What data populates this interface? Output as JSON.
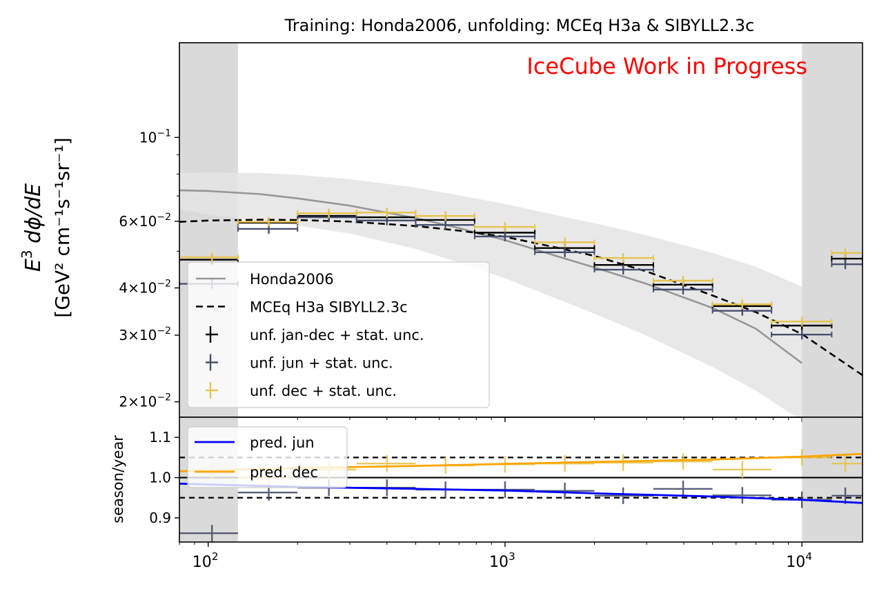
{
  "chart_data": {
    "type": "errorbar",
    "title": "Training: Honda2006, unfolding: MCEq H3a & SIBYLL2.3c",
    "watermark": "IceCube Work in Progress",
    "x_scale": "log",
    "x_range": [
      80,
      16000
    ],
    "x_tick_labels": [
      {
        "value": 100,
        "mantissa": "10",
        "exp": "2"
      },
      {
        "value": 1000,
        "mantissa": "10",
        "exp": "3"
      },
      {
        "value": 10000,
        "mantissa": "10",
        "exp": "4"
      }
    ],
    "excluded_regions": [
      [
        80,
        126
      ],
      [
        10000,
        16000
      ]
    ],
    "colors": {
      "honda": "#969696",
      "mceq": "#000000",
      "jan_dec": "#000000",
      "jun": "#474e6c",
      "dec": "#e6c44e",
      "pred_jun": "#0000ff",
      "pred_dec": "#ffa500",
      "band": "#e4e4e4",
      "excluded": "#dadada",
      "watermark": "#ff0000"
    },
    "top_panel": {
      "ylabel_line1": "E³ dφ/dE",
      "ylabel_line1_parts": {
        "base": "E",
        "sup": "3",
        "rest": " dϕ/dE"
      },
      "ylabel_line2": "[GeV² cm⁻¹s⁻¹sr⁻¹]",
      "y_scale": "log",
      "y_range": [
        0.0182,
        0.178
      ],
      "y_tick_labels": [
        {
          "value": 0.1,
          "mantissa": "10",
          "exp": "−1",
          "prefix": ""
        },
        {
          "value": 0.06,
          "prefix": "6×",
          "mantissa": "10",
          "exp": "−2"
        },
        {
          "value": 0.04,
          "prefix": "4×",
          "mantissa": "10",
          "exp": "−2"
        },
        {
          "value": 0.03,
          "prefix": "3×",
          "mantissa": "10",
          "exp": "−2"
        },
        {
          "value": 0.02,
          "prefix": "2×",
          "mantissa": "10",
          "exp": "−2"
        }
      ],
      "honda2006": {
        "x": [
          80,
          100,
          150,
          200,
          300,
          500,
          700,
          1000,
          1500,
          2000,
          3000,
          5000,
          7000,
          10000
        ],
        "y": [
          0.0725,
          0.0722,
          0.0708,
          0.069,
          0.066,
          0.0612,
          0.0576,
          0.0535,
          0.0485,
          0.0453,
          0.041,
          0.0354,
          0.0312,
          0.0253
        ],
        "band_upper": [
          0.0805,
          0.0808,
          0.0805,
          0.0796,
          0.0776,
          0.0737,
          0.0703,
          0.0667,
          0.0622,
          0.0593,
          0.0551,
          0.0495,
          0.0455,
          0.0403
        ],
        "band_lower": [
          0.0645,
          0.0625,
          0.06,
          0.0585,
          0.0557,
          0.0507,
          0.0467,
          0.0424,
          0.0374,
          0.0342,
          0.0299,
          0.0247,
          0.0214,
          0.0178
        ]
      },
      "mceq_h3a": {
        "x": [
          80,
          100,
          150,
          200,
          300,
          500,
          700,
          1000,
          1500,
          2000,
          3000,
          5000,
          7000,
          10000,
          16000
        ],
        "y": [
          0.0598,
          0.0603,
          0.0606,
          0.0605,
          0.0599,
          0.0583,
          0.0567,
          0.0546,
          0.0511,
          0.0486,
          0.0442,
          0.0382,
          0.0345,
          0.0302,
          0.0235
        ]
      },
      "bins": [
        {
          "lo": 80,
          "hi": 126,
          "c": 103
        },
        {
          "lo": 126,
          "hi": 200,
          "c": 160
        },
        {
          "lo": 200,
          "hi": 316,
          "c": 255
        },
        {
          "lo": 316,
          "hi": 500,
          "c": 400
        },
        {
          "lo": 500,
          "hi": 790,
          "c": 630
        },
        {
          "lo": 790,
          "hi": 1260,
          "c": 1000
        },
        {
          "lo": 1260,
          "hi": 2000,
          "c": 1590
        },
        {
          "lo": 2000,
          "hi": 3160,
          "c": 2500
        },
        {
          "lo": 3160,
          "hi": 5000,
          "c": 3980
        },
        {
          "lo": 5000,
          "hi": 7900,
          "c": 6300
        },
        {
          "lo": 7900,
          "hi": 12600,
          "c": 10000
        },
        {
          "lo": 12600,
          "hi": 16000,
          "c": 14000
        }
      ],
      "series": [
        {
          "name": "unf. jan-dec + stat. unc.",
          "key": "jan_dec",
          "x": [
            103,
            160,
            255,
            400,
            630,
            1000,
            1590,
            2500,
            3980,
            6300,
            10000,
            14000
          ],
          "y": [
            0.0475,
            0.0595,
            0.062,
            0.0615,
            0.0605,
            0.056,
            0.051,
            0.046,
            0.0408,
            0.0358,
            0.0318,
            0.0478
          ]
        },
        {
          "name": "unf. jun + stat. unc.",
          "key": "jun",
          "x": [
            103,
            160,
            255,
            400,
            630,
            1000,
            1590,
            2500,
            3980,
            6300,
            10000,
            14000
          ],
          "y": [
            0.041,
            0.0573,
            0.0615,
            0.0603,
            0.0587,
            0.0547,
            0.0497,
            0.0447,
            0.0396,
            0.0348,
            0.0301,
            0.0462
          ]
        },
        {
          "name": "unf. dec + stat. unc.",
          "key": "dec",
          "x": [
            103,
            160,
            255,
            400,
            630,
            1000,
            1590,
            2500,
            3980,
            6300,
            10000,
            14000
          ],
          "y": [
            0.0482,
            0.0598,
            0.063,
            0.0633,
            0.062,
            0.058,
            0.0528,
            0.048,
            0.0418,
            0.0362,
            0.0326,
            0.0495
          ]
        }
      ],
      "legend": [
        {
          "label": "Honda2006",
          "style": "honda"
        },
        {
          "label": "MCEq H3a SIBYLL2.3c",
          "style": "mceq"
        },
        {
          "label": "unf. jan-dec + stat. unc.",
          "style": "jan_dec"
        },
        {
          "label": "unf. jun + stat. unc.",
          "style": "jun"
        },
        {
          "label": "unf. dec + stat. unc.",
          "style": "dec"
        }
      ]
    },
    "bottom_panel": {
      "ylabel": "season/year",
      "y_range": [
        0.84,
        1.15
      ],
      "y_tick_labels": [
        {
          "value": 0.9,
          "label": "0.9"
        },
        {
          "value": 1.0,
          "label": "1.0"
        },
        {
          "value": 1.1,
          "label": "1.1"
        }
      ],
      "reference_lines": [
        0.95,
        1.0,
        1.05
      ],
      "pred_jun": {
        "label": "pred. jun",
        "x": [
          80,
          100,
          200,
          500,
          1000,
          2000,
          5000,
          10000,
          16000
        ],
        "y": [
          0.985,
          0.983,
          0.977,
          0.972,
          0.968,
          0.961,
          0.953,
          0.945,
          0.937
        ]
      },
      "pred_dec": {
        "label": "pred. dec",
        "x": [
          80,
          100,
          200,
          500,
          1000,
          2000,
          5000,
          10000,
          16000
        ],
        "y": [
          1.016,
          1.018,
          1.024,
          1.029,
          1.034,
          1.039,
          1.045,
          1.052,
          1.059
        ]
      },
      "ratio_jun": {
        "x": [
          103,
          160,
          255,
          400,
          630,
          1000,
          1590,
          2500,
          3980,
          6300,
          10000,
          14000
        ],
        "y": [
          0.862,
          0.963,
          0.975,
          0.975,
          0.97,
          0.97,
          0.967,
          0.955,
          0.972,
          0.956,
          0.945,
          0.955
        ]
      },
      "ratio_dec": {
        "x": [
          103,
          160,
          255,
          400,
          630,
          1000,
          1590,
          2500,
          3980,
          6300,
          10000,
          14000
        ],
        "y": [
          1.015,
          1.0,
          1.02,
          1.035,
          1.03,
          1.033,
          1.035,
          1.037,
          1.04,
          1.02,
          1.05,
          1.035
        ]
      },
      "legend": [
        {
          "label": "pred. jun",
          "style": "pred_jun"
        },
        {
          "label": "pred. dec",
          "style": "pred_dec"
        }
      ]
    }
  }
}
